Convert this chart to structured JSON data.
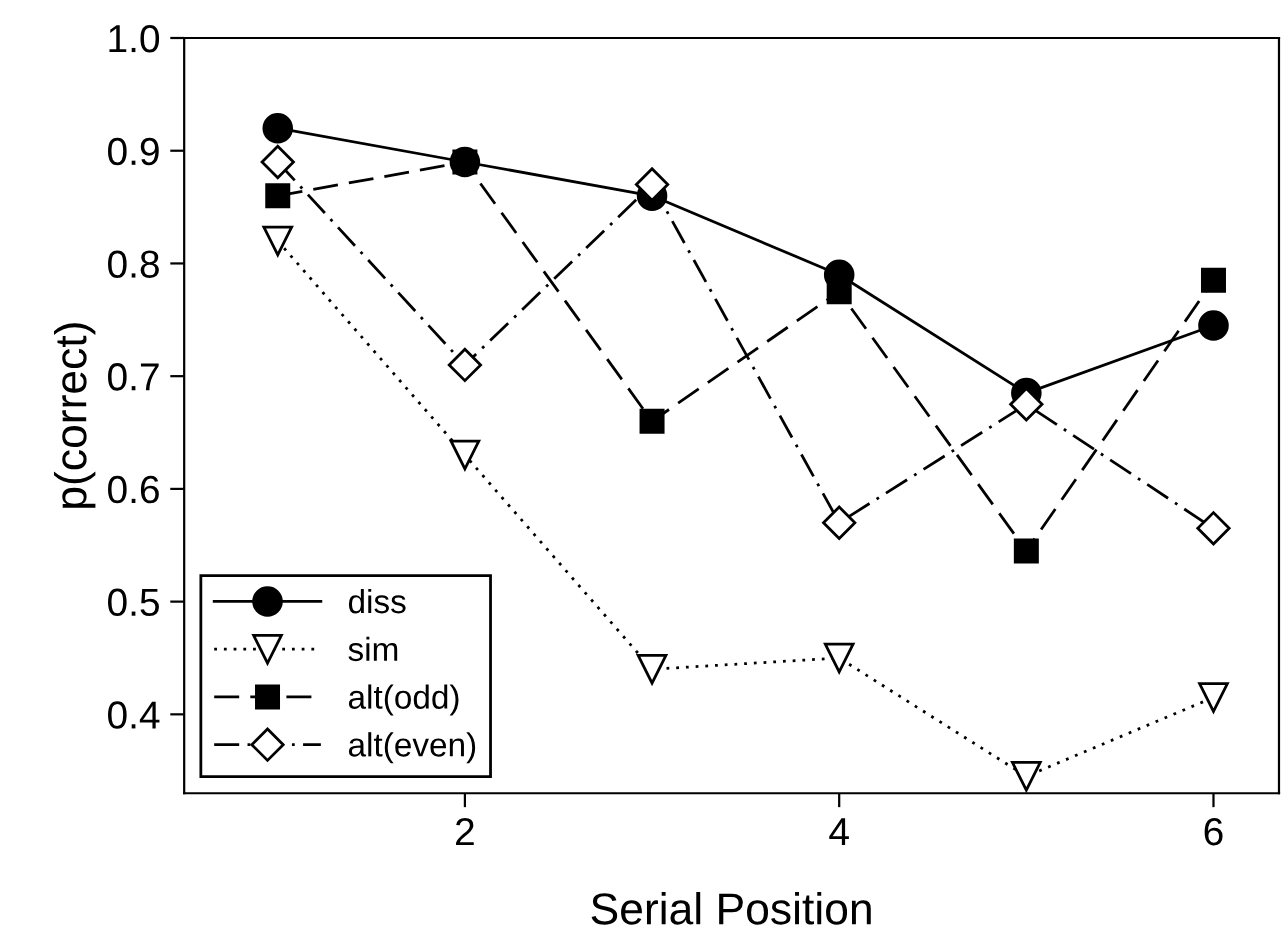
{
  "chart_data": {
    "type": "line",
    "xlabel": "Serial Position",
    "ylabel": "p(correct)",
    "x": [
      1,
      2,
      3,
      4,
      5,
      6
    ],
    "xlim": [
      0.5,
      6.35
    ],
    "xticks": [
      2,
      4,
      6
    ],
    "ylim": [
      0.33,
      1.0
    ],
    "yticks": [
      {
        "value": 0.4,
        "label": "0.4"
      },
      {
        "value": 0.5,
        "label": "0.5"
      },
      {
        "value": 0.6,
        "label": "0.6"
      },
      {
        "value": 0.7,
        "label": "0.7"
      },
      {
        "value": 0.8,
        "label": "0.8"
      },
      {
        "value": 0.9,
        "label": "0.9"
      },
      {
        "value": 1.0,
        "label": "1.0"
      }
    ],
    "grid": false,
    "legend": "bottom left",
    "series": [
      {
        "name": "diss",
        "color": "#000000",
        "marker": "circle",
        "line_style": "solid",
        "values": [
          0.92,
          0.89,
          0.86,
          0.79,
          0.685,
          0.745
        ]
      },
      {
        "name": "sim",
        "color": "#000000",
        "marker": "triangle",
        "line_style": "dotted",
        "values": [
          0.82,
          0.63,
          0.44,
          0.45,
          0.345,
          0.415
        ]
      },
      {
        "name": "alt(odd)",
        "color": "#000000",
        "marker": "square",
        "line_style": "dashed",
        "values": [
          0.86,
          0.89,
          0.66,
          0.775,
          0.545,
          0.785
        ]
      },
      {
        "name": "alt(even)",
        "color": "#000000",
        "marker": "diamond",
        "line_style": "dashdot",
        "values": [
          0.89,
          0.71,
          0.87,
          0.57,
          0.675,
          0.565
        ]
      }
    ]
  }
}
